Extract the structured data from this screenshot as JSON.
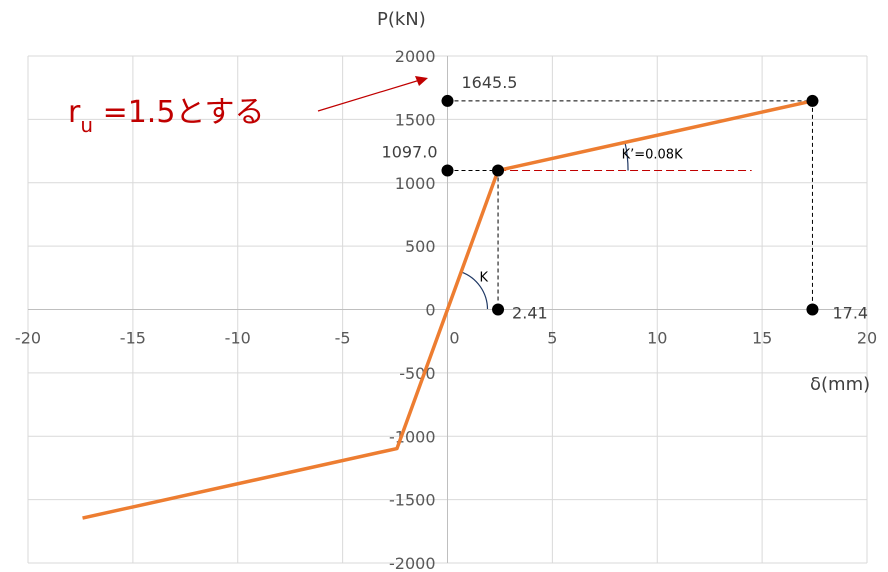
{
  "chart_data": {
    "type": "line",
    "x_title": "δ(mm)",
    "y_title": "P(kN)",
    "xlim": [
      -20,
      20
    ],
    "ylim": [
      -2000,
      2000
    ],
    "x_ticks": [
      -20,
      -15,
      -10,
      -5,
      0,
      5,
      10,
      15,
      20
    ],
    "y_ticks": [
      -2000,
      -1500,
      -1000,
      -500,
      0,
      500,
      1000,
      1500,
      2000
    ],
    "grid": true,
    "series": [
      {
        "color": "#ED7D31",
        "x": [
          -17.4,
          -2.41,
          0,
          2.41,
          17.4
        ],
        "y": [
          -1645.5,
          -1097.0,
          0,
          1097.0,
          1645.5
        ]
      }
    ],
    "markers": [
      {
        "x": 0,
        "y": 1645.5
      },
      {
        "x": 17.4,
        "y": 1645.5
      },
      {
        "x": 0,
        "y": 1097.0
      },
      {
        "x": 2.41,
        "y": 1097.0
      },
      {
        "x": 2.41,
        "y": 0
      },
      {
        "x": 17.4,
        "y": 0
      }
    ],
    "labels": {
      "y_peak": "1645.5",
      "y_yield": "1097.0",
      "x_yield": "2.41",
      "x_peak": "17.4",
      "k_label": "K",
      "k2_label": "K’=0.08K"
    },
    "annotation": {
      "main": "r",
      "sub": "u",
      "rest": " =1.5とする"
    }
  }
}
